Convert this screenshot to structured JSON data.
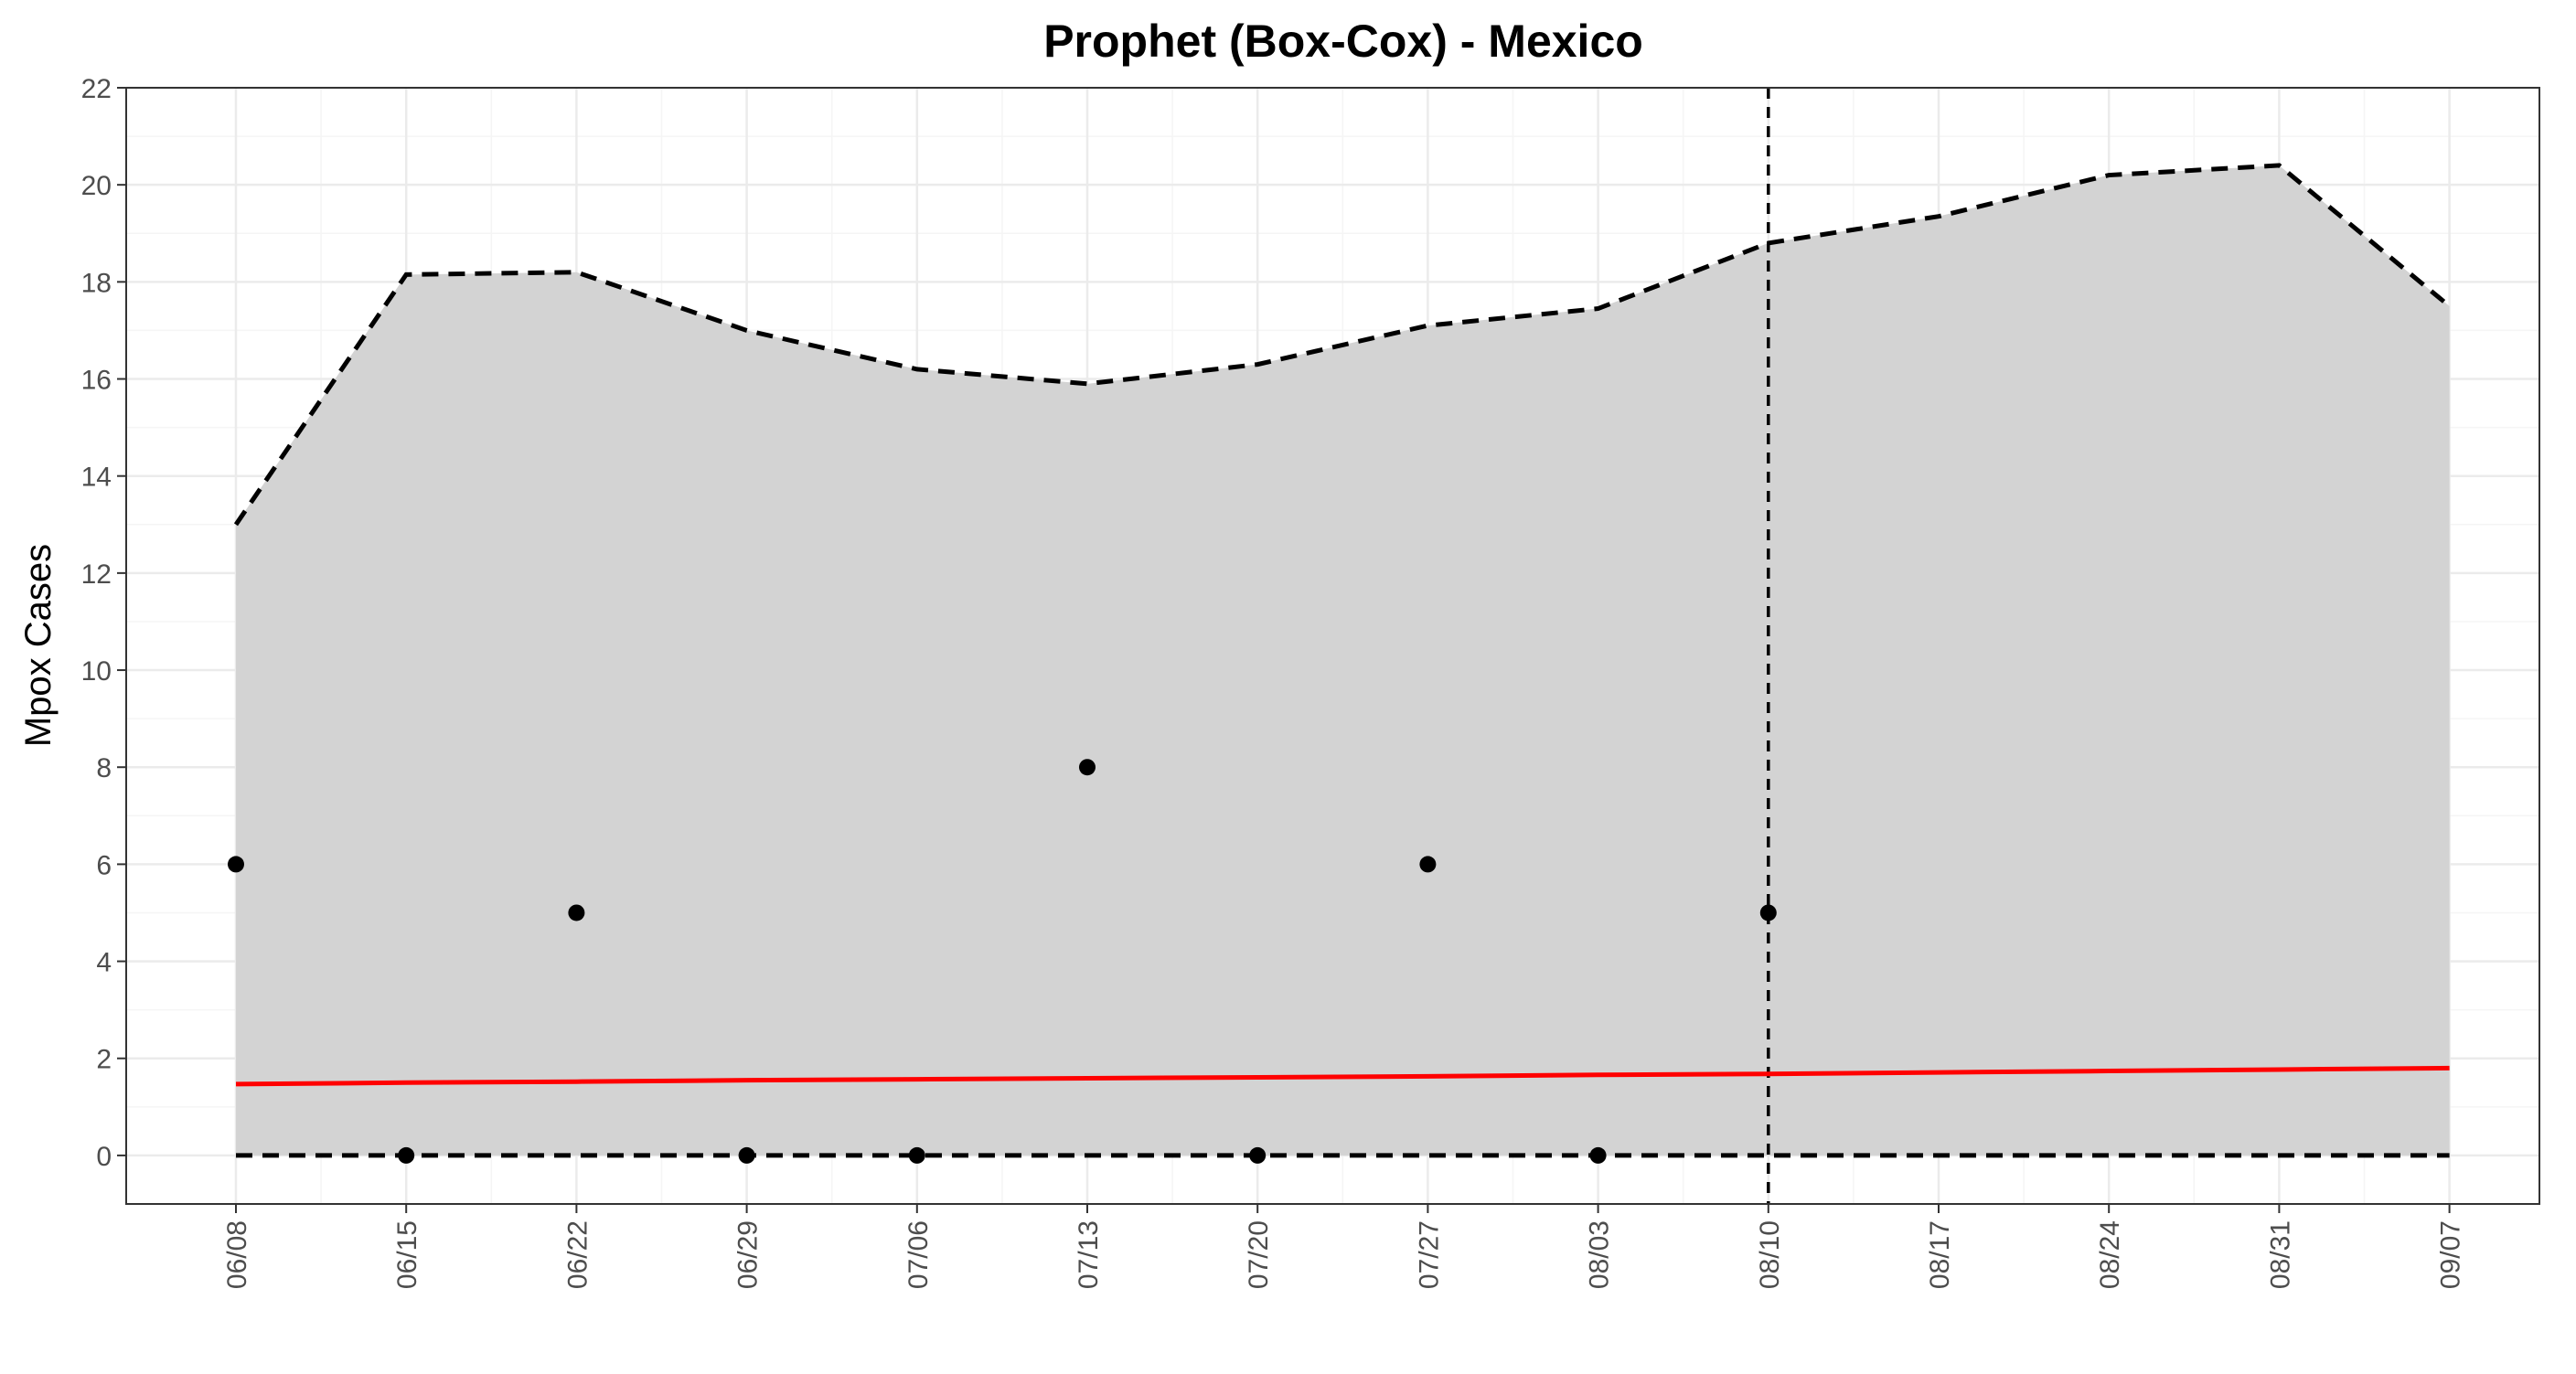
{
  "chart_data": {
    "type": "line",
    "title": "Prophet (Box-Cox) - Mexico",
    "xlabel": "",
    "ylabel": "Mpox Cases",
    "x_ticks": [
      "06/08",
      "06/15",
      "06/22",
      "06/29",
      "07/06",
      "07/13",
      "07/20",
      "07/27",
      "08/03",
      "08/10",
      "08/17",
      "08/24",
      "08/31",
      "09/07"
    ],
    "ylim": [
      -1,
      22
    ],
    "y_ticks": [
      0,
      2,
      4,
      6,
      8,
      10,
      12,
      14,
      16,
      18,
      20,
      22
    ],
    "grid": true,
    "forecast_start": "08/10",
    "observed": {
      "x": [
        "06/08",
        "06/15",
        "06/22",
        "06/29",
        "07/06",
        "07/13",
        "07/20",
        "07/27",
        "08/03",
        "08/10"
      ],
      "values": [
        6,
        0,
        5,
        0,
        0,
        8,
        0,
        6,
        0,
        5
      ]
    },
    "forecast": {
      "x": [
        "06/08",
        "06/15",
        "06/22",
        "06/29",
        "07/06",
        "07/13",
        "07/20",
        "07/27",
        "08/03",
        "08/10",
        "08/17",
        "08/24",
        "08/31",
        "09/07"
      ],
      "values": [
        1.47,
        1.5,
        1.52,
        1.55,
        1.57,
        1.59,
        1.61,
        1.63,
        1.66,
        1.68,
        1.71,
        1.74,
        1.77,
        1.8
      ]
    },
    "upper_bound": [
      13.0,
      18.15,
      18.2,
      17.0,
      16.2,
      15.9,
      16.3,
      17.1,
      17.45,
      18.8,
      19.35,
      20.2,
      20.4,
      17.5
    ],
    "lower_bound": [
      0,
      0,
      0,
      0,
      0,
      0,
      0,
      0,
      0,
      0,
      0,
      0,
      0,
      0
    ],
    "colors": {
      "band": "#d3d3d3",
      "forecast_line": "#ff0000",
      "bounds": "#000000",
      "points": "#000000",
      "grid_major": "#ebebeb",
      "grid_minor": "#f5f5f5",
      "axis_text": "#4d4d4d"
    }
  }
}
